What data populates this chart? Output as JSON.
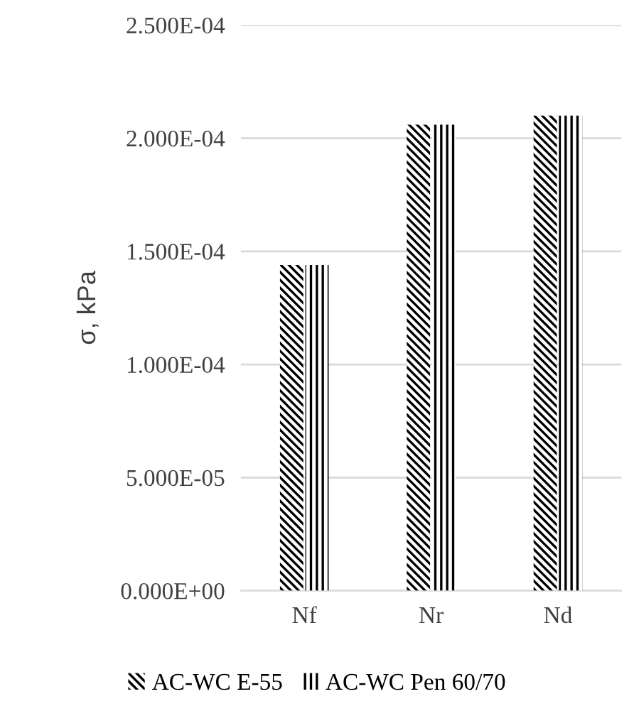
{
  "chart_data": {
    "type": "bar",
    "ylabel": "σ, kPa",
    "categories": [
      "Nf",
      "Nr",
      "Nd"
    ],
    "series": [
      {
        "name": "AC-WC E-55",
        "color": "#000000",
        "values": [
          0.000144,
          0.000206,
          0.00021
        ]
      },
      {
        "name": "AC-WC Pen 60/70",
        "color": "#000000",
        "values": [
          0.000144,
          0.000206,
          0.00021
        ]
      }
    ],
    "ylim": [
      0,
      0.00025
    ],
    "yticks": [
      {
        "value": 0,
        "label": "0.000E+00"
      },
      {
        "value": 5e-05,
        "label": "5.000E-05"
      },
      {
        "value": 0.0001,
        "label": "1.000E-04"
      },
      {
        "value": 0.00015,
        "label": "1.500E-04"
      },
      {
        "value": 0.0002,
        "label": "2.000E-04"
      },
      {
        "value": 0.00025,
        "label": "2.500E-04"
      }
    ],
    "grid": "y",
    "legend": "bottom"
  }
}
